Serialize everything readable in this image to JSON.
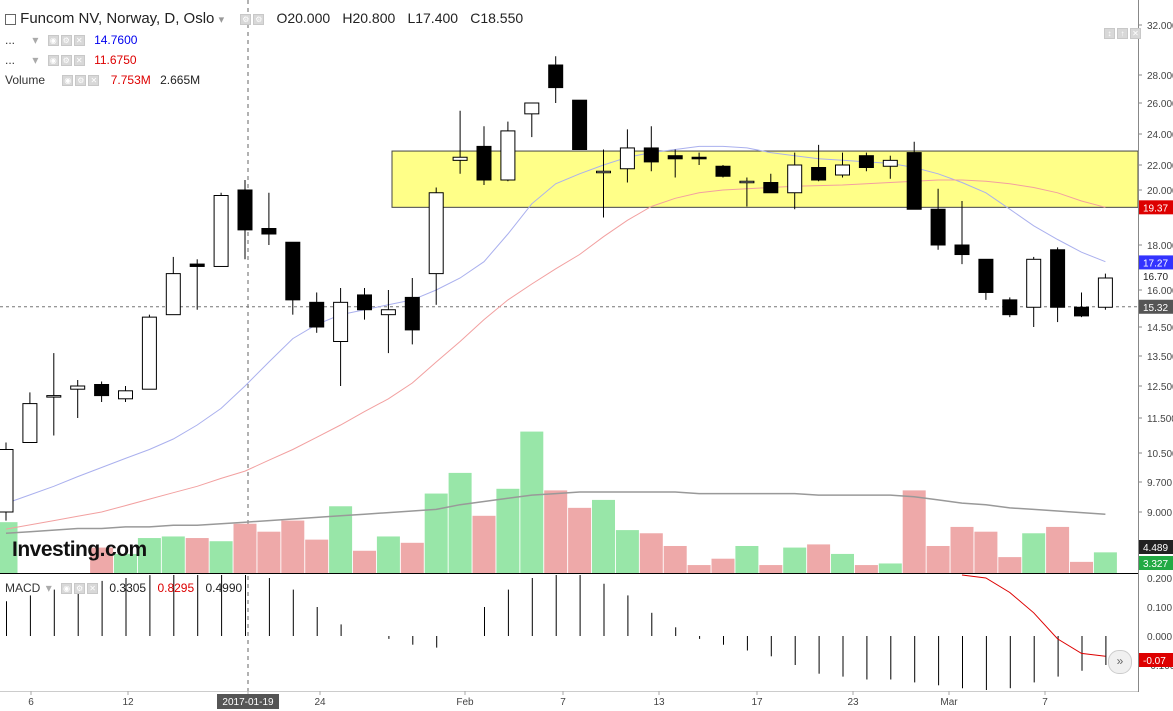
{
  "legend": {
    "title": "Funcom NV, Norway, D, Oslo",
    "open": "O20.000",
    "high": "H20.800",
    "low": "L17.400",
    "close": "C18.550",
    "ma1_label": "...",
    "ma1_value": "14.7600",
    "ma2_label": "...",
    "ma2_value": "11.6750",
    "volume_label": "Volume",
    "volume_value1": "7.753M",
    "volume_value2": "2.665M",
    "macd_label": "MACD",
    "macd_value1": "0.3305",
    "macd_value2": "0.8295",
    "macd_value3": "0.4990"
  },
  "watermark": "Investing.com",
  "cursor_date": "2017-01-19",
  "colors": {
    "up_fill": "#ffffff",
    "down_fill": "#000000",
    "vol_up": "#98e6a8",
    "vol_down": "#eea9a9",
    "ma_fast": "#aab0ee",
    "ma_slow": "#f2a0a0",
    "zone": "#ffff88",
    "ma1_text": "#0000ee",
    "ma2_text": "#dd0000"
  },
  "chart_data": {
    "type": "candlestick",
    "x_ticks": [
      "6",
      "12",
      "2017-01-19",
      "24",
      "Feb",
      "7",
      "13",
      "17",
      "23",
      "Mar",
      "7"
    ],
    "y_ticks": [
      "32.000",
      "28.000",
      "26.000",
      "24.000",
      "22.000",
      "20.000",
      "18.000",
      "16.000",
      "14.500",
      "13.500",
      "12.500",
      "11.500",
      "10.500",
      "9.700",
      "9.000"
    ],
    "price_badges": [
      {
        "label": "19.37",
        "value": 19.37,
        "color": "#dd0000"
      },
      {
        "label": "17.27",
        "value": 17.27,
        "color": "#3333ff"
      },
      {
        "label": "16.70",
        "value": 16.7,
        "color": ""
      },
      {
        "label": "15.32",
        "value": 15.32,
        "color": "#555555"
      }
    ],
    "volume_badges": [
      {
        "label": "4.489",
        "color": "#222222"
      },
      {
        "label": "3.327",
        "color": "#22aa44"
      }
    ],
    "macd_ticks": [
      "0.200",
      "0.100",
      "0.000",
      "-0.100"
    ],
    "macd_badge": "-0.07",
    "price_zone": [
      19.37,
      22.9
    ],
    "candles": [
      {
        "o": 9.0,
        "h": 10.8,
        "l": 8.8,
        "c": 10.6
      },
      {
        "o": 10.8,
        "h": 12.3,
        "l": 10.8,
        "c": 11.95
      },
      {
        "o": 12.2,
        "h": 13.6,
        "l": 11.0,
        "c": 12.2
      },
      {
        "o": 12.4,
        "h": 12.7,
        "l": 11.5,
        "c": 12.5
      },
      {
        "o": 12.55,
        "h": 12.65,
        "l": 12.0,
        "c": 12.2
      },
      {
        "o": 12.1,
        "h": 12.5,
        "l": 12.0,
        "c": 12.35
      },
      {
        "o": 12.4,
        "h": 15.0,
        "l": 12.4,
        "c": 14.9
      },
      {
        "o": 15.0,
        "h": 17.5,
        "l": 15.0,
        "c": 16.8
      },
      {
        "o": 17.2,
        "h": 17.4,
        "l": 15.2,
        "c": 17.1
      },
      {
        "o": 17.1,
        "h": 19.9,
        "l": 17.1,
        "c": 19.8
      },
      {
        "o": 20.0,
        "h": 20.8,
        "l": 17.4,
        "c": 18.55
      },
      {
        "o": 18.6,
        "h": 19.9,
        "l": 18.0,
        "c": 18.4
      },
      {
        "o": 18.1,
        "h": 18.1,
        "l": 15.0,
        "c": 15.6
      },
      {
        "o": 15.5,
        "h": 15.9,
        "l": 14.3,
        "c": 14.5
      },
      {
        "o": 14.0,
        "h": 16.1,
        "l": 12.5,
        "c": 15.5
      },
      {
        "o": 15.8,
        "h": 16.1,
        "l": 14.8,
        "c": 15.2
      },
      {
        "o": 15.0,
        "h": 16.0,
        "l": 13.6,
        "c": 15.2
      },
      {
        "o": 15.7,
        "h": 16.6,
        "l": 13.9,
        "c": 14.4
      },
      {
        "o": 16.8,
        "h": 20.2,
        "l": 15.4,
        "c": 19.9
      },
      {
        "o": 22.3,
        "h": 25.5,
        "l": 21.3,
        "c": 22.5
      },
      {
        "o": 23.2,
        "h": 24.5,
        "l": 20.4,
        "c": 20.8
      },
      {
        "o": 20.8,
        "h": 24.8,
        "l": 20.7,
        "c": 24.2
      },
      {
        "o": 25.3,
        "h": 26.0,
        "l": 23.8,
        "c": 26.0
      },
      {
        "o": 28.8,
        "h": 29.5,
        "l": 26.0,
        "c": 27.1
      },
      {
        "o": 26.2,
        "h": 26.2,
        "l": 23.0,
        "c": 23.0
      },
      {
        "o": 21.5,
        "h": 23.0,
        "l": 19.0,
        "c": 21.5
      },
      {
        "o": 21.7,
        "h": 24.3,
        "l": 20.6,
        "c": 23.1
      },
      {
        "o": 23.1,
        "h": 24.5,
        "l": 21.5,
        "c": 22.2
      },
      {
        "o": 22.6,
        "h": 23.0,
        "l": 21.0,
        "c": 22.4
      },
      {
        "o": 22.5,
        "h": 22.8,
        "l": 22.0,
        "c": 22.4
      },
      {
        "o": 21.9,
        "h": 22.0,
        "l": 21.0,
        "c": 21.1
      },
      {
        "o": 20.7,
        "h": 21.0,
        "l": 19.4,
        "c": 20.7
      },
      {
        "o": 20.6,
        "h": 21.3,
        "l": 19.9,
        "c": 19.9
      },
      {
        "o": 19.9,
        "h": 22.8,
        "l": 19.3,
        "c": 22.0
      },
      {
        "o": 21.8,
        "h": 23.3,
        "l": 20.7,
        "c": 20.8
      },
      {
        "o": 21.2,
        "h": 22.8,
        "l": 21.0,
        "c": 22.0
      },
      {
        "o": 22.6,
        "h": 22.8,
        "l": 21.5,
        "c": 21.8
      },
      {
        "o": 21.9,
        "h": 22.6,
        "l": 20.9,
        "c": 22.3
      },
      {
        "o": 22.8,
        "h": 23.5,
        "l": 19.3,
        "c": 19.3
      },
      {
        "o": 19.3,
        "h": 20.1,
        "l": 17.8,
        "c": 18.0
      },
      {
        "o": 18.0,
        "h": 19.6,
        "l": 17.2,
        "c": 17.6
      },
      {
        "o": 17.4,
        "h": 17.4,
        "l": 15.6,
        "c": 15.9
      },
      {
        "o": 15.6,
        "h": 15.7,
        "l": 14.9,
        "c": 15.0
      },
      {
        "o": 15.3,
        "h": 17.5,
        "l": 14.5,
        "c": 17.4
      },
      {
        "o": 17.8,
        "h": 17.9,
        "l": 14.7,
        "c": 15.3
      },
      {
        "o": 15.3,
        "h": 15.9,
        "l": 14.9,
        "c": 14.95
      },
      {
        "o": 15.3,
        "h": 16.8,
        "l": 15.2,
        "c": 16.6
      }
    ],
    "volume": [
      3.2,
      0,
      0,
      0,
      1.6,
      1.2,
      2.2,
      2.3,
      2.2,
      2.0,
      3.1,
      2.6,
      3.3,
      2.1,
      4.2,
      1.4,
      2.3,
      1.9,
      5.0,
      6.3,
      3.6,
      5.3,
      8.9,
      5.2,
      4.1,
      4.6,
      2.7,
      2.5,
      1.7,
      0.5,
      0.9,
      1.7,
      0.5,
      1.6,
      1.8,
      1.2,
      0.5,
      0.6,
      5.2,
      1.7,
      2.9,
      2.6,
      1.0,
      2.5,
      2.9,
      0.7,
      1.3
    ],
    "volume_ma": [
      2.5,
      2.6,
      2.7,
      2.8,
      2.8,
      2.9,
      2.9,
      3.0,
      3.0,
      3.1,
      3.2,
      3.3,
      3.4,
      3.5,
      3.6,
      3.7,
      3.8,
      3.9,
      4.0,
      4.3,
      4.5,
      4.7,
      4.9,
      5.0,
      5.1,
      5.1,
      5.1,
      5.1,
      5.1,
      5.0,
      5.0,
      5.0,
      5.0,
      5.0,
      4.9,
      4.9,
      4.9,
      4.9,
      4.8,
      4.6,
      4.4,
      4.3,
      4.1,
      4.0,
      3.9,
      3.8,
      3.7
    ],
    "ma_fast": [
      9.2,
      9.4,
      9.6,
      9.85,
      10.1,
      10.35,
      10.6,
      10.9,
      11.3,
      11.8,
      12.5,
      13.3,
      14.1,
      14.6,
      15.0,
      15.2,
      15.4,
      15.6,
      16.0,
      16.6,
      17.3,
      18.4,
      19.5,
      20.5,
      21.3,
      22.0,
      22.5,
      22.8,
      23.0,
      23.2,
      23.2,
      23.1,
      22.8,
      22.6,
      22.4,
      22.3,
      22.2,
      22.1,
      21.8,
      21.3,
      20.6,
      19.9,
      19.3,
      18.7,
      18.2,
      17.7,
      17.3
    ],
    "ma_slow": [
      8.6,
      8.7,
      8.8,
      8.9,
      9.0,
      9.15,
      9.3,
      9.45,
      9.6,
      9.8,
      10.0,
      10.3,
      10.6,
      10.95,
      11.3,
      11.7,
      12.1,
      12.6,
      13.3,
      14.0,
      14.8,
      15.6,
      16.3,
      17.0,
      17.6,
      18.3,
      18.9,
      19.4,
      19.7,
      19.9,
      20.0,
      20.1,
      20.2,
      20.3,
      20.35,
      20.4,
      20.5,
      20.6,
      20.7,
      20.8,
      20.8,
      20.7,
      20.5,
      20.2,
      19.9,
      19.6,
      19.37
    ],
    "macd_hist": [
      0.12,
      0.14,
      0.16,
      0.17,
      0.19,
      0.2,
      0.21,
      0.22,
      0.22,
      0.23,
      0.22,
      0.2,
      0.16,
      0.1,
      0.04,
      0.0,
      -0.01,
      -0.03,
      -0.04,
      0.0,
      0.1,
      0.16,
      0.2,
      0.24,
      0.22,
      0.18,
      0.14,
      0.08,
      0.03,
      -0.01,
      -0.03,
      -0.05,
      -0.07,
      -0.1,
      -0.13,
      -0.14,
      -0.15,
      -0.15,
      -0.16,
      -0.17,
      -0.18,
      -0.19,
      -0.18,
      -0.16,
      -0.14,
      -0.12,
      -0.1
    ],
    "macd_signal": [
      0.22,
      0.22,
      0.22,
      0.22,
      0.22,
      0.22,
      0.22,
      0.22,
      0.22,
      0.22,
      0.22,
      0.22,
      0.22,
      0.22,
      0.22,
      0.22,
      0.22,
      0.22,
      0.22,
      0.22,
      0.22,
      0.22,
      0.22,
      0.22,
      0.22,
      0.22,
      0.22,
      0.22,
      0.22,
      0.22,
      0.22,
      0.22,
      0.22,
      0.22,
      0.22,
      0.22,
      0.22,
      0.22,
      0.22,
      0.22,
      0.22,
      0.2,
      0.15,
      0.08,
      -0.01,
      -0.06,
      -0.07
    ]
  }
}
